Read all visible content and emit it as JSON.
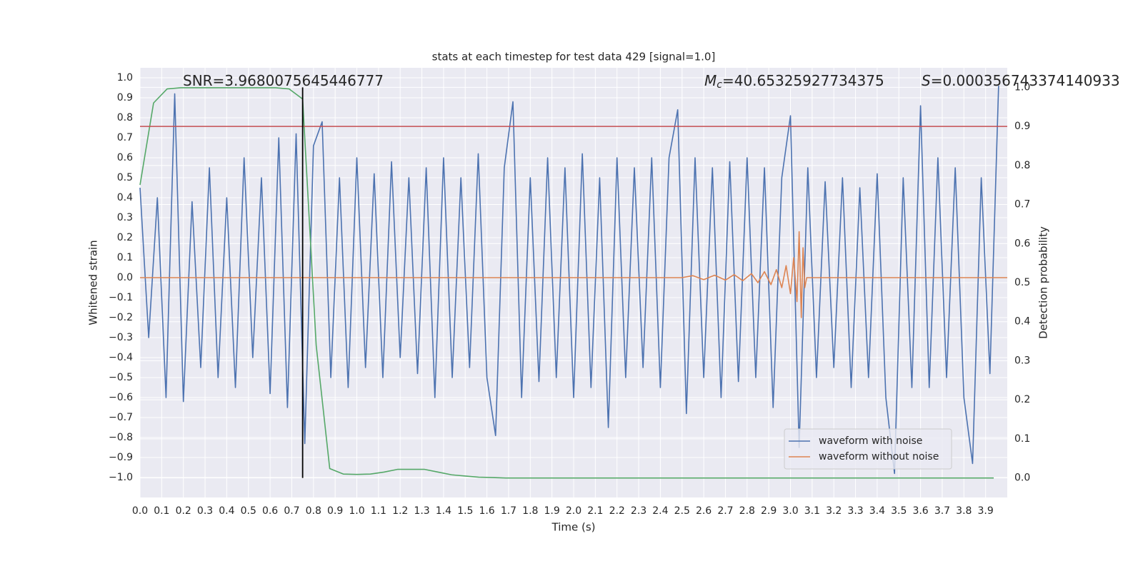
{
  "chart_data": {
    "type": "line",
    "title": "stats at each timestep for test data 429 [signal=1.0]",
    "xlabel": "Time (s)",
    "ylabel": "Whitened strain",
    "y2label": "Detection probability",
    "annotations": [
      {
        "text": "SNR=3.9680075645446777"
      },
      {
        "symbol": "M",
        "subscript": "c",
        "text": "=40.65325927734375"
      },
      {
        "symbol": "S",
        "text": "=0.000356743374140933"
      }
    ],
    "xlim": [
      0,
      4.0
    ],
    "ylim": [
      -1.1,
      1.05
    ],
    "y2lim": [
      -0.05,
      1.05
    ],
    "xticks": [
      {
        "value": 0,
        "label": "0.0"
      },
      0.1,
      0.2,
      0.3,
      0.4,
      0.5,
      0.6,
      0.7,
      0.8,
      0.9,
      {
        "value": 1,
        "label": "1.0"
      },
      1.1,
      1.2,
      1.3,
      1.4,
      1.5,
      1.6,
      1.7,
      1.8,
      1.9,
      {
        "value": 2,
        "label": "2.0"
      },
      2.1,
      2.2,
      2.3,
      2.4,
      2.5,
      2.6,
      2.7,
      2.8,
      2.9,
      {
        "value": 3,
        "label": "3.0"
      },
      3.1,
      3.2,
      3.3,
      3.4,
      3.5,
      3.6,
      3.7,
      3.8,
      3.9
    ],
    "yticks": [
      {
        "value": 1,
        "label": "1.0"
      },
      0.9,
      0.8,
      0.7,
      0.6,
      0.5,
      0.4,
      0.3,
      0.2,
      0.1,
      {
        "value": 0,
        "label": "0.0"
      },
      {
        "value": -0.1,
        "label": "−0.1"
      },
      {
        "value": -0.2,
        "label": "−0.2"
      },
      {
        "value": -0.3,
        "label": "−0.3"
      },
      {
        "value": -0.4,
        "label": "−0.4"
      },
      {
        "value": -0.5,
        "label": "−0.5"
      },
      {
        "value": -0.6,
        "label": "−0.6"
      },
      {
        "value": -0.7,
        "label": "−0.7"
      },
      {
        "value": -0.8,
        "label": "−0.8"
      },
      {
        "value": -0.9,
        "label": "−0.9"
      },
      {
        "value": -1,
        "label": "−1.0"
      }
    ],
    "y2ticks": [
      {
        "value": 1,
        "label": "1.0"
      },
      0.9,
      0.8,
      0.7,
      0.6,
      0.5,
      0.4,
      0.3,
      0.2,
      0.1,
      {
        "value": 0,
        "label": "0.0"
      }
    ],
    "grid": true,
    "legend": "lower right",
    "hlines": [
      {
        "y": 0.9,
        "axis": "y2",
        "color": "#c44e52"
      }
    ],
    "vlines": [
      {
        "x": 0.75,
        "ymin": 0,
        "ymax": 1,
        "axis": "y2",
        "color": "#000000"
      }
    ],
    "series": [
      {
        "name": "waveform with noise",
        "color": "#4c72b0",
        "x": [
          0,
          0.04,
          0.08,
          0.12,
          0.16,
          0.2,
          0.24,
          0.28,
          0.32,
          0.36,
          0.4,
          0.44,
          0.48,
          0.52,
          0.56,
          0.6,
          0.64,
          0.68,
          0.72,
          0.76,
          0.8,
          0.84,
          0.88,
          0.92,
          0.96,
          1.0,
          1.04,
          1.08,
          1.12,
          1.16,
          1.2,
          1.24,
          1.28,
          1.32,
          1.36,
          1.4,
          1.44,
          1.48,
          1.52,
          1.56,
          1.6,
          1.64,
          1.68,
          1.72,
          1.76,
          1.8,
          1.84,
          1.88,
          1.92,
          1.96,
          2.0,
          2.04,
          2.08,
          2.12,
          2.16,
          2.2,
          2.24,
          2.28,
          2.32,
          2.36,
          2.4,
          2.44,
          2.48,
          2.52,
          2.56,
          2.6,
          2.64,
          2.68,
          2.72,
          2.76,
          2.8,
          2.84,
          2.88,
          2.92,
          2.96,
          3.0,
          3.04,
          3.08,
          3.12,
          3.16,
          3.2,
          3.24,
          3.28,
          3.32,
          3.36,
          3.4,
          3.44,
          3.48,
          3.52,
          3.56,
          3.6,
          3.64,
          3.68,
          3.72,
          3.76,
          3.8,
          3.84,
          3.88,
          3.92,
          3.96
        ],
        "values": [
          0.45,
          -0.3,
          0.4,
          -0.6,
          0.92,
          -0.62,
          0.38,
          -0.45,
          0.55,
          -0.5,
          0.4,
          -0.55,
          0.6,
          -0.4,
          0.5,
          -0.58,
          0.7,
          -0.65,
          0.72,
          -0.83,
          0.66,
          0.78,
          -0.5,
          0.5,
          -0.55,
          0.6,
          -0.45,
          0.52,
          -0.5,
          0.58,
          -0.4,
          0.5,
          -0.48,
          0.55,
          -0.6,
          0.6,
          -0.5,
          0.5,
          -0.45,
          0.62,
          -0.5,
          -0.79,
          0.55,
          0.88,
          -0.6,
          0.5,
          -0.52,
          0.6,
          -0.5,
          0.55,
          -0.6,
          0.62,
          -0.55,
          0.5,
          -0.75,
          0.6,
          -0.5,
          0.55,
          -0.45,
          0.6,
          -0.55,
          0.6,
          0.84,
          -0.68,
          0.6,
          -0.5,
          0.55,
          -0.6,
          0.58,
          -0.52,
          0.6,
          -0.5,
          0.55,
          -0.65,
          0.5,
          0.81,
          -0.85,
          0.55,
          -0.5,
          0.48,
          -0.45,
          0.5,
          -0.55,
          0.45,
          -0.5,
          0.52,
          -0.6,
          -0.98,
          0.5,
          -0.55,
          0.86,
          -0.55,
          0.6,
          -0.5,
          0.55,
          -0.6,
          -0.93,
          0.5,
          -0.48,
          0.96
        ]
      },
      {
        "name": "waveform without noise",
        "color": "#dd8452",
        "x": [
          0,
          2.5,
          2.55,
          2.6,
          2.65,
          2.7,
          2.74,
          2.78,
          2.82,
          2.85,
          2.88,
          2.91,
          2.935,
          2.96,
          2.98,
          3.0,
          3.015,
          3.03,
          3.04,
          3.05,
          3.058,
          3.066,
          3.075,
          4.0
        ],
        "values": [
          0,
          0,
          0.01,
          -0.01,
          0.012,
          -0.012,
          0.015,
          -0.015,
          0.02,
          -0.025,
          0.03,
          -0.035,
          0.04,
          -0.05,
          0.06,
          -0.08,
          0.1,
          -0.12,
          0.23,
          -0.2,
          0.15,
          -0.05,
          0,
          0
        ]
      },
      {
        "color": "#55a868",
        "axis": "y2",
        "x": [
          0,
          0.0625,
          0.125,
          0.1875,
          0.25,
          0.3125,
          0.375,
          0.4375,
          0.5,
          0.5625,
          0.625,
          0.6875,
          0.75,
          0.8125,
          0.875,
          0.9375,
          1.0,
          1.0625,
          1.125,
          1.1875,
          1.25,
          1.3125,
          1.375,
          1.4375,
          1.5,
          1.5625,
          1.625,
          1.6875,
          1.75,
          2.0,
          2.5,
          3.0,
          3.5,
          3.9375
        ],
        "values": [
          0.75,
          0.96,
          0.996,
          0.999,
          0.999,
          0.999,
          0.999,
          0.999,
          0.999,
          0.999,
          0.999,
          0.996,
          0.97,
          0.34,
          0.024,
          0.01,
          0.009,
          0.01,
          0.015,
          0.022,
          0.022,
          0.022,
          0.015,
          0.008,
          0.005,
          0.002,
          0.001,
          0,
          0,
          0,
          0,
          0,
          0,
          0
        ]
      }
    ]
  }
}
